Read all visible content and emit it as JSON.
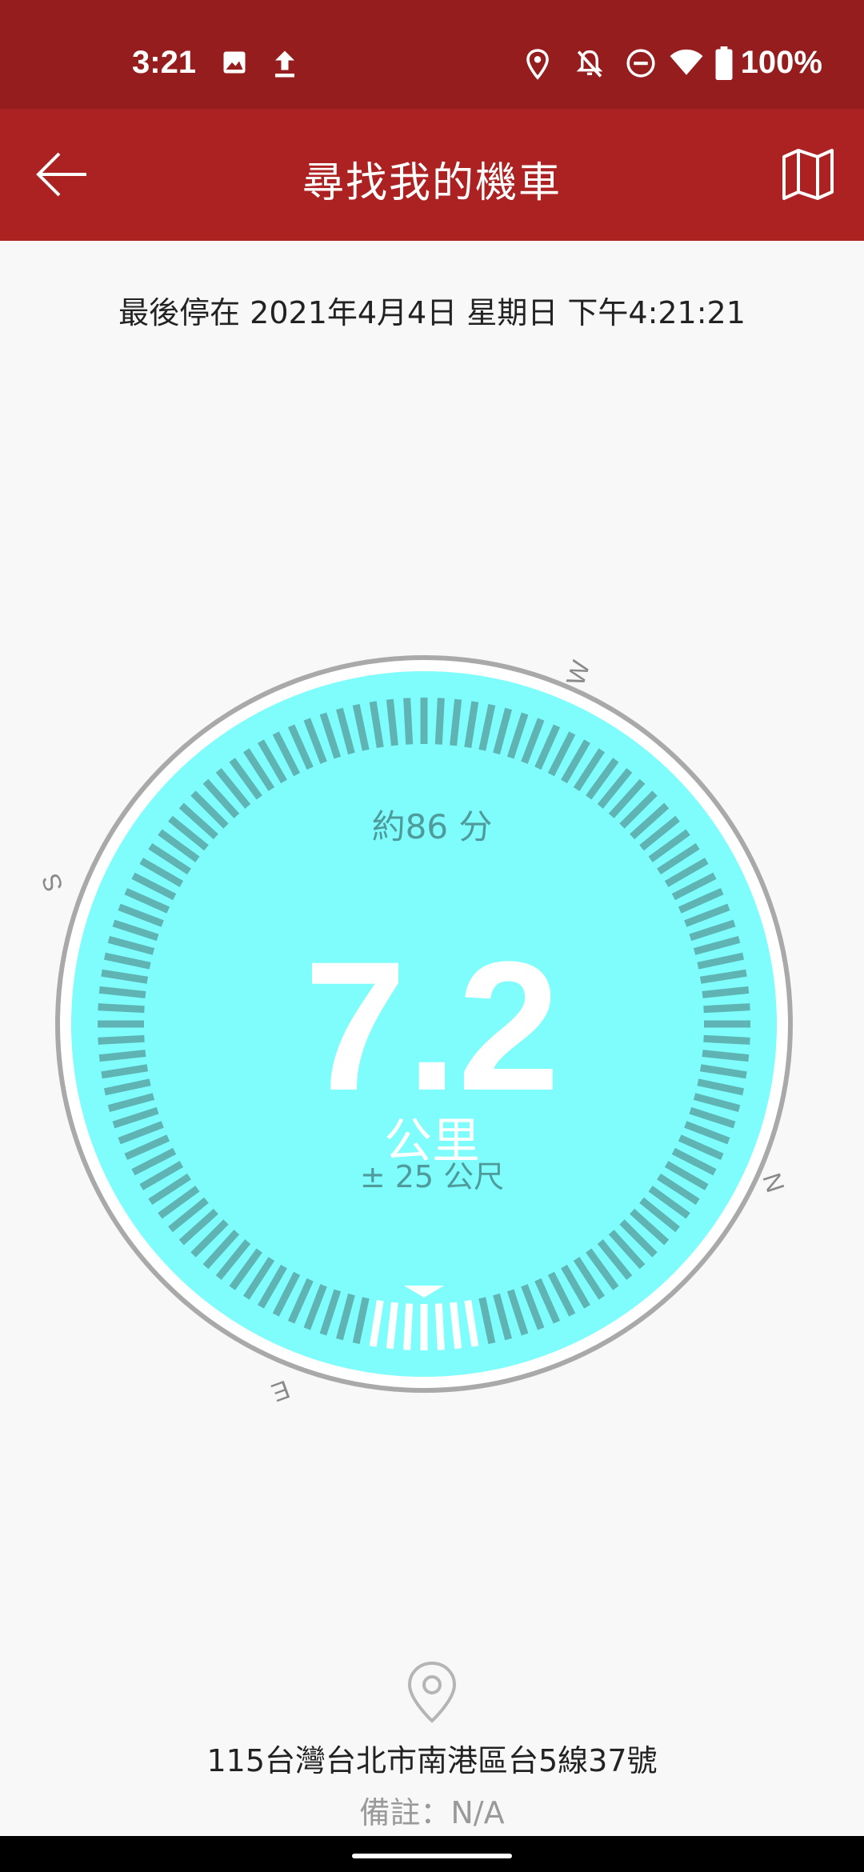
{
  "status_bar": {
    "time": "3:21",
    "battery": "100%",
    "icons": [
      "image-icon",
      "upload-icon",
      "location-icon",
      "bell-off-icon",
      "do-not-disturb-icon",
      "wifi-icon",
      "battery-icon"
    ]
  },
  "app_bar": {
    "title": "尋找我的機車",
    "back_icon": "arrow-left-icon",
    "map_icon": "map-icon"
  },
  "last_parked": "最後停在 2021年4月4日 星期日 下午4:21:21",
  "compass": {
    "directions": [
      "W",
      "S",
      "N",
      "E"
    ],
    "eta": "約86 分",
    "distance_value": "7.2",
    "distance_unit": "公里",
    "accuracy": "± 25 公尺",
    "colors": {
      "dial": "#7ffcfc",
      "ticks": "#5fb3b3",
      "ring": "#a9a9a9"
    }
  },
  "location": {
    "pin_icon": "map-pin-icon",
    "address": "115台灣台北市南港區台5線37號",
    "note": "備註：N/A"
  },
  "colors": {
    "status_bar": "#961d1d",
    "app_bar": "#ac2222",
    "background": "#f8f8f8"
  }
}
